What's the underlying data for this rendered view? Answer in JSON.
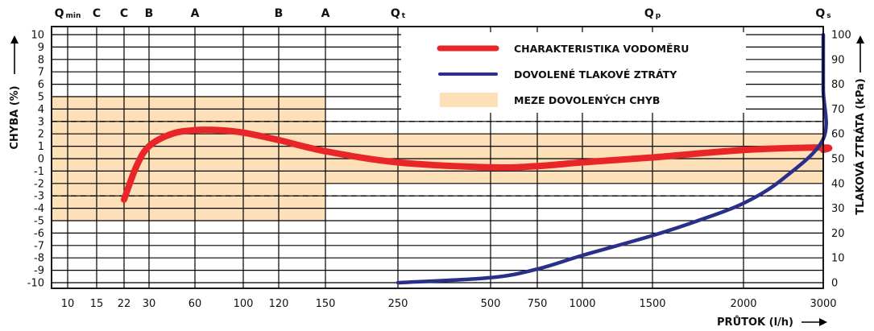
{
  "chart_data": {
    "type": "line",
    "y_left_label": "CHYBA (%)",
    "y_right_label": "TLAKOVÁ ZTRÁTA (kPa)",
    "x_label": "PRŮTOK (l/h)",
    "x_ticks": [
      "10",
      "15",
      "22",
      "30",
      "60",
      "100",
      "120",
      "150",
      "250",
      "500",
      "750",
      "1000",
      "1500",
      "2000",
      "3000"
    ],
    "y_left_ticks": [
      "10",
      "9",
      "8",
      "7",
      "6",
      "5",
      "4",
      "3",
      "2",
      "1",
      "0",
      "-1",
      "-2",
      "-3",
      "-4",
      "-5",
      "-6",
      "-7",
      "-8",
      "-9",
      "-10"
    ],
    "y_left_range": [
      -10,
      10
    ],
    "y_right_ticks": [
      "100",
      "90",
      "80",
      "70",
      "60",
      "50",
      "40",
      "30",
      "20",
      "10",
      "0"
    ],
    "y_right_range": [
      0,
      100
    ],
    "top_markers": [
      {
        "label": "Q",
        "sub": "min",
        "at_tick": "10"
      },
      {
        "label": "C",
        "sub": "",
        "at_tick": "15"
      },
      {
        "label": "C",
        "sub": "",
        "at_tick": "22"
      },
      {
        "label": "B",
        "sub": "",
        "at_tick": "30"
      },
      {
        "label": "A",
        "sub": "",
        "at_tick": "60"
      },
      {
        "label": "B",
        "sub": "",
        "at_tick": "120"
      },
      {
        "label": "A",
        "sub": "",
        "at_tick": "150"
      },
      {
        "label": "Q",
        "sub": "t",
        "at_tick": "250"
      },
      {
        "label": "Q",
        "sub": "p",
        "at_tick": "1500"
      },
      {
        "label": "Q",
        "sub": "s",
        "at_tick": "3000"
      }
    ],
    "legend": [
      {
        "label": "CHARAKTERISTIKA VODOMĚRU",
        "kind": "line",
        "color": "#e8262a"
      },
      {
        "label": "DOVOLENÉ TLAKOVÉ ZTRÁTY",
        "kind": "line",
        "color": "#2a2f8a"
      },
      {
        "label": "MEZE DOVOLENÝCH CHYB",
        "kind": "band",
        "color": "#fde0b8"
      }
    ],
    "error_limit_bands": [
      {
        "from_tick": "10",
        "to_tick": "150",
        "y_min": -5,
        "y_max": 5
      },
      {
        "from_tick": "150",
        "to_tick": "3000",
        "y_min": -2,
        "y_max": 2
      }
    ],
    "reference_lines_percent": [
      3,
      -3
    ],
    "series": [
      {
        "name": "CHARAKTERISTIKA VODOMĚRU",
        "axis": "left",
        "color": "#e8262a",
        "points": [
          {
            "tick": 2,
            "y": -3.3
          },
          {
            "tick": 2.5,
            "y": -0.6
          },
          {
            "tick": 3,
            "y": 1.0
          },
          {
            "tick": 3.5,
            "y": 2.0
          },
          {
            "tick": 4,
            "y": 2.3
          },
          {
            "tick": 4.5,
            "y": 2.3
          },
          {
            "tick": 5,
            "y": 2.1
          },
          {
            "tick": 6,
            "y": 1.5
          },
          {
            "tick": 7,
            "y": 0.6
          },
          {
            "tick": 8,
            "y": -0.3
          },
          {
            "tick": 9,
            "y": -0.7
          },
          {
            "tick": 10,
            "y": -0.6
          },
          {
            "tick": 11,
            "y": -0.3
          },
          {
            "tick": 12,
            "y": 0.1
          },
          {
            "tick": 13,
            "y": 0.7
          },
          {
            "tick": 14,
            "y": 0.9
          },
          {
            "tick": 14.8,
            "y": 0.7
          }
        ]
      },
      {
        "name": "DOVOLENÉ TLAKOVÉ ZTRÁTY",
        "axis": "right",
        "color": "#2a2f8a",
        "points": [
          {
            "tick": 8,
            "y": 0
          },
          {
            "tick": 9,
            "y": 2
          },
          {
            "tick": 10,
            "y": 5.5
          },
          {
            "tick": 11,
            "y": 11
          },
          {
            "tick": 12,
            "y": 19
          },
          {
            "tick": 12.5,
            "y": 25
          },
          {
            "tick": 13,
            "y": 32
          },
          {
            "tick": 13.5,
            "y": 42
          },
          {
            "tick": 14,
            "y": 58
          },
          {
            "tick": 14.5,
            "y": 78
          },
          {
            "tick": 15,
            "y": 100
          }
        ]
      }
    ]
  }
}
